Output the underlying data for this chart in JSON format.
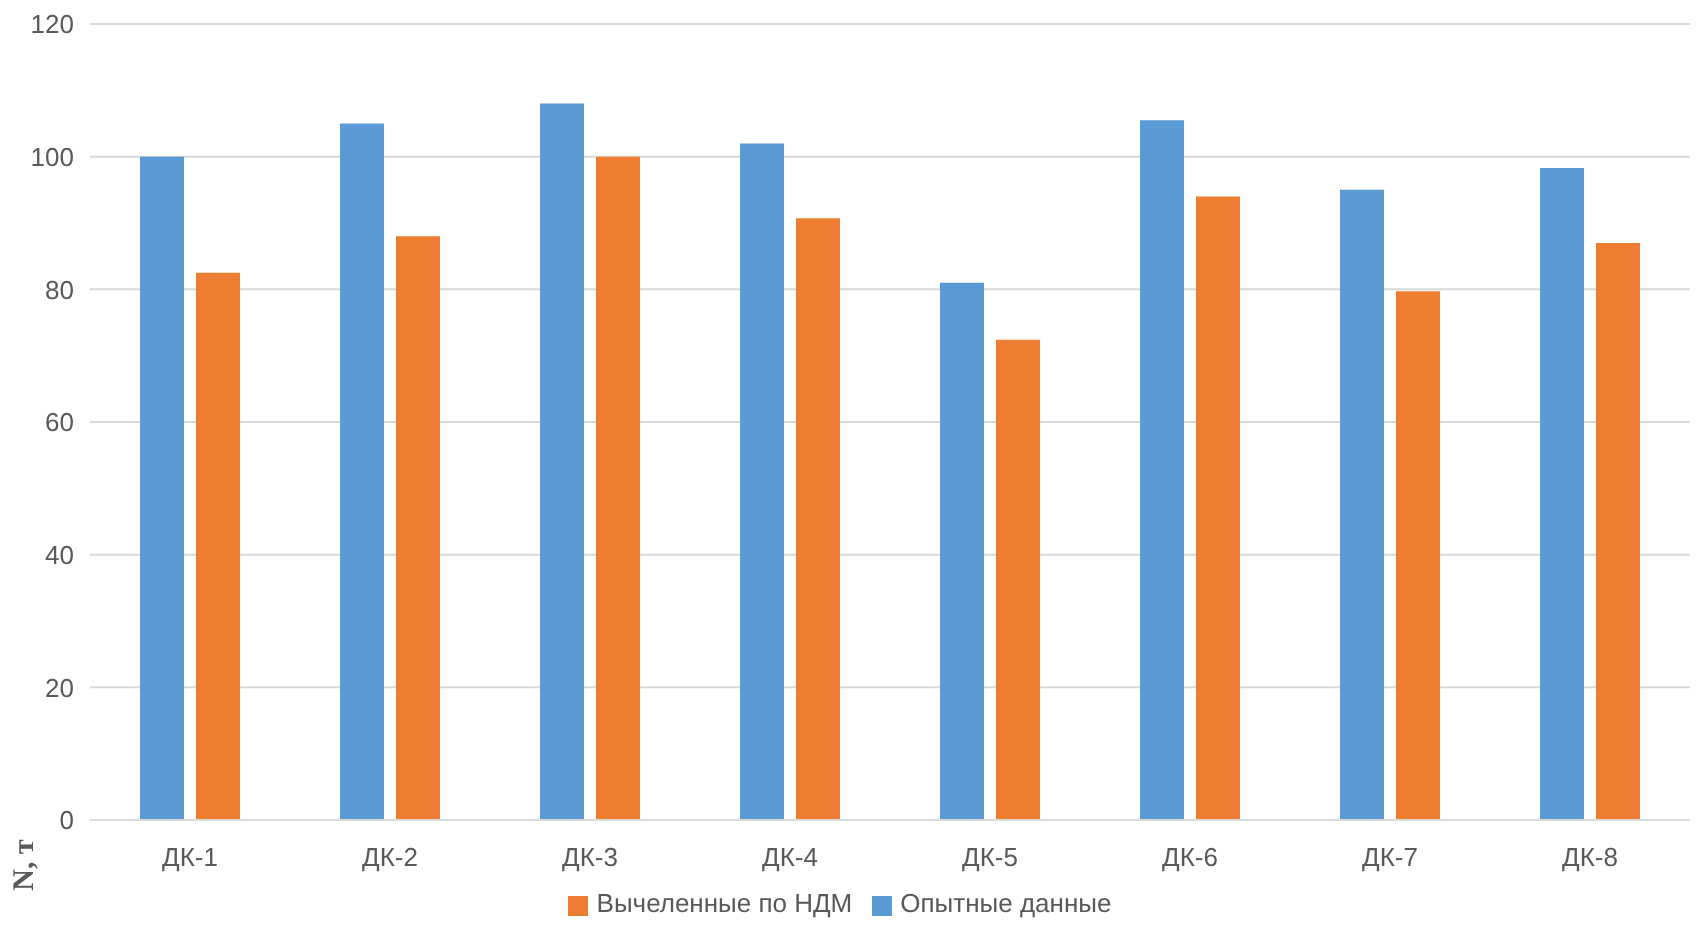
{
  "chart_data": {
    "type": "bar",
    "ylabel": "N, т",
    "categories": [
      "ДК-1",
      "ДК-2",
      "ДК-3",
      "ДК-4",
      "ДК-5",
      "ДК-6",
      "ДК-7",
      "ДК-8"
    ],
    "series": [
      {
        "name": "Опытные данные",
        "color": "#5b9bd5",
        "values": [
          100,
          105,
          108,
          102,
          81,
          105.5,
          95,
          98.3
        ]
      },
      {
        "name": "Вычеленные по НДМ",
        "color": "#ed7d31",
        "values": [
          82.5,
          88,
          100,
          90.7,
          72.4,
          94,
          79.7,
          87
        ]
      }
    ],
    "ylim": [
      0,
      120
    ],
    "yticks": [
      0,
      20,
      40,
      60,
      80,
      100,
      120
    ],
    "grid": "y",
    "legend": "bottom"
  }
}
